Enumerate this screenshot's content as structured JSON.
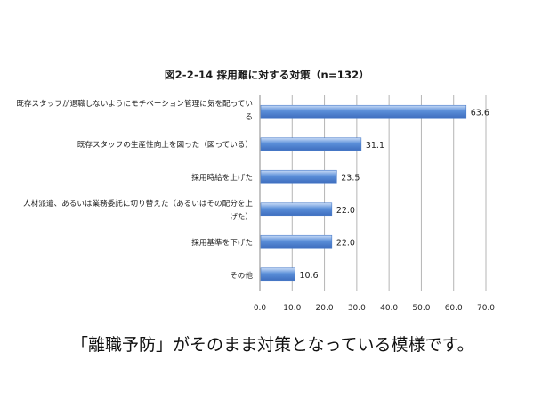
{
  "caption": "「離職予防」がそのまま対策となっている模様です。",
  "chart_data": {
    "type": "bar",
    "orientation": "horizontal",
    "title": "図2-2-14 採用難に対する対策（n=132）",
    "categories": [
      "既存スタッフが退職しないようにモチベーション管理に気を配っている",
      "既存スタッフの生産性向上を図った（図っている）",
      "採用時給を上げた",
      "人材派遣、あるいは業務委託に切り替えた（あるいはその配分を上げた）",
      "採用基準を下げた",
      "その他"
    ],
    "values": [
      63.6,
      31.1,
      23.5,
      22.0,
      22.0,
      10.6
    ],
    "value_labels": [
      "63.6",
      "31.1",
      "23.5",
      "22.0",
      "22.0",
      "10.6"
    ],
    "xlim": [
      0,
      70
    ],
    "x_ticks": [
      "0.0",
      "10.0",
      "20.0",
      "30.0",
      "40.0",
      "50.0",
      "60.0",
      "70.0"
    ],
    "grid": true,
    "legend": "none",
    "bar_color": "#5b8fd9",
    "bar_highlight": "#c9dcf7",
    "grid_color": "#b5b5b5"
  }
}
